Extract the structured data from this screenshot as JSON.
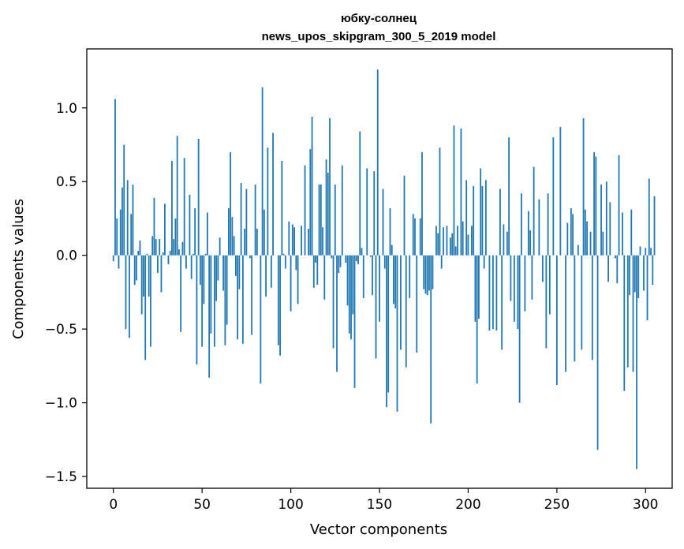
{
  "chart_data": {
    "type": "bar",
    "title_line1": "юбку-солнец",
    "title_line2": "news_upos_skipgram_300_5_2019 model",
    "xlabel": "Vector components",
    "ylabel": "Components values",
    "xlim": [
      -15,
      315
    ],
    "ylim": [
      -1.58,
      1.4
    ],
    "xticks": [
      0,
      50,
      100,
      150,
      200,
      250,
      300
    ],
    "xtick_labels": [
      "0",
      "50",
      "100",
      "150",
      "200",
      "250",
      "300"
    ],
    "yticks": [
      -1.5,
      -1.0,
      -0.5,
      0.0,
      0.5,
      1.0
    ],
    "ytick_labels": [
      "−1.5",
      "−1.0",
      "−0.5",
      "0.0",
      "0.5",
      "1.0"
    ],
    "bar_color": "#1f77b4",
    "grid": false,
    "values": [
      -0.04,
      1.06,
      0.25,
      -0.09,
      0.31,
      0.46,
      0.75,
      -0.5,
      0.51,
      -0.56,
      0.28,
      0.48,
      -0.2,
      -0.17,
      0.03,
      0.1,
      -0.4,
      -0.28,
      -0.71,
      0.01,
      -0.28,
      -0.62,
      0.13,
      0.39,
      0.11,
      -0.12,
      0.11,
      -0.25,
      0.02,
      0.35,
      0.0,
      -0.06,
      0.03,
      0.64,
      0.11,
      0.25,
      0.81,
      0.04,
      -0.52,
      0.09,
      0.66,
      -0.09,
      0.0,
      0.41,
      -0.16,
      0.01,
      0.32,
      -0.74,
      0.79,
      -0.2,
      -0.62,
      -0.33,
      0.01,
      0.29,
      -0.83,
      -0.53,
      0.0,
      -0.62,
      -0.31,
      -0.17,
      0.12,
      0.0,
      -0.24,
      -0.61,
      -0.47,
      0.32,
      0.7,
      0.26,
      0.13,
      -0.14,
      -0.57,
      -0.23,
      0.49,
      -0.6,
      0.18,
      0.45,
      0.0,
      -0.02,
      -0.54,
      0.0,
      0.48,
      0.18,
      0.0,
      -0.87,
      1.14,
      0.31,
      -0.28,
      0.73,
      0.0,
      -0.22,
      0.83,
      0.0,
      0.0,
      -0.61,
      -0.68,
      0.64,
      0.01,
      -0.09,
      0.0,
      0.23,
      -0.38,
      0.21,
      0.19,
      -0.1,
      -0.33,
      0.0,
      0.2,
      0.0,
      0.61,
      0.0,
      0.18,
      0.72,
      0.94,
      -0.22,
      -0.05,
      -0.2,
      0.48,
      0.48,
      0.19,
      -0.3,
      0.65,
      0.56,
      0.93,
      -0.02,
      -0.63,
      0.48,
      -0.79,
      -0.12,
      -0.08,
      0.61,
      0.0,
      -0.05,
      -0.34,
      -0.53,
      -0.57,
      -0.4,
      -0.9,
      -0.04,
      -0.06,
      0.84,
      0.05,
      -0.29,
      0.0,
      0.59,
      0.0,
      -0.01,
      -0.27,
      0.57,
      -0.7,
      1.26,
      -0.45,
      0.0,
      0.45,
      -0.09,
      -1.03,
      -0.93,
      0.32,
      0.07,
      -0.33,
      -0.36,
      -1.06,
      0.0,
      -0.64,
      0.0,
      0.54,
      -0.76,
      0.0,
      -0.29,
      0.0,
      0.28,
      0.25,
      -0.66,
      0.0,
      0.25,
      0.7,
      -0.23,
      -0.26,
      -0.27,
      -0.24,
      -1.14,
      -0.23,
      0.0,
      0.2,
      0.15,
      0.73,
      -0.09,
      0.19,
      0.0,
      0.2,
      0.0,
      0.12,
      0.15,
      0.88,
      0.06,
      0.2,
      0.0,
      0.86,
      0.23,
      0.0,
      0.51,
      0.14,
      0.0,
      0.2,
      0.47,
      -0.45,
      -0.87,
      -0.43,
      0.59,
      0.47,
      -0.09,
      0.51,
      0.0,
      -0.51,
      0.0,
      -0.5,
      0.0,
      -0.51,
      0.0,
      0.45,
      -0.64,
      0.21,
      0.0,
      0.16,
      0.8,
      -0.31,
      0.0,
      -0.45,
      0.0,
      -0.5,
      -1.0,
      0.42,
      0.0,
      -0.38,
      0.0,
      0.3,
      0.17,
      -0.3,
      0.6,
      0.0,
      0.0,
      0.38,
      0.0,
      -0.18,
      0.0,
      -0.63,
      0.42,
      -0.4,
      0.0,
      0.8,
      0.0,
      -0.88,
      0.0,
      0.87,
      0.0,
      0.0,
      -0.79,
      0.22,
      0.0,
      0.32,
      0.28,
      -0.72,
      0.0,
      0.07,
      0.0,
      -0.64,
      0.93,
      0.31,
      0.23,
      0.0,
      0.16,
      -0.71,
      0.7,
      0.67,
      -1.32,
      0.0,
      0.48,
      0.16,
      0.0,
      0.5,
      -0.18,
      0.36,
      0.0,
      0.0,
      -0.02,
      -0.19,
      0.68,
      0.0,
      0.29,
      -0.92,
      0.0,
      -0.76,
      -0.27,
      0.31,
      -0.79,
      -0.25,
      -1.45,
      -0.29,
      0.06,
      0.0,
      -0.24,
      0.05,
      -0.44,
      0.52,
      0.05,
      -0.2,
      0.4
    ]
  }
}
